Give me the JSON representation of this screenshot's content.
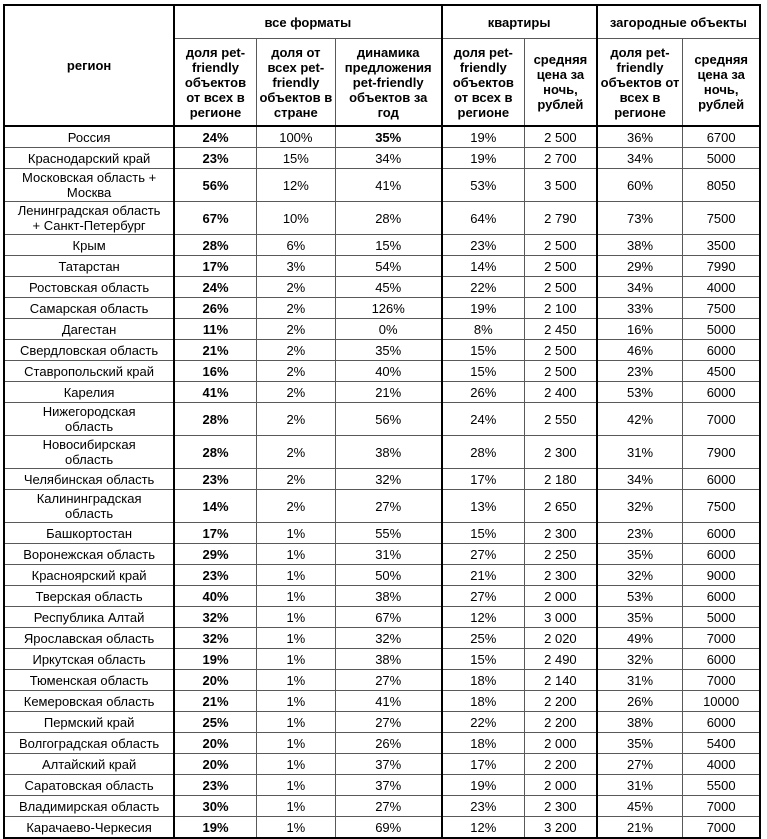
{
  "chart_data": {
    "type": "table",
    "title": "",
    "corner_header": "регион",
    "column_groups": [
      {
        "label": "все форматы",
        "span": 3
      },
      {
        "label": "квартиры",
        "span": 2
      },
      {
        "label": "загородные объекты",
        "span": 2
      }
    ],
    "columns": [
      "доля pet-friendly объектов от всех в регионе",
      "доля от всех pet-friendly объектов в стране",
      "динамика предложения pet-friendly объектов за год",
      "доля pet-friendly объектов от всех в регионе",
      "средняя цена за ночь, рублей",
      "доля pet-friendly объектов от всех в регионе",
      "средняя цена за ночь, рублей"
    ],
    "rows": [
      {
        "region": "Россия",
        "values": [
          "24%",
          "100%",
          "35%",
          "19%",
          "2 500",
          "36%",
          "6700"
        ],
        "bold_value_indexes": [
          0,
          2
        ]
      },
      {
        "region": "Краснодарский край",
        "values": [
          "23%",
          "15%",
          "34%",
          "19%",
          "2 700",
          "34%",
          "5000"
        ],
        "bold_value_indexes": [
          0
        ]
      },
      {
        "region": "Московская область + Москва",
        "values": [
          "56%",
          "12%",
          "41%",
          "53%",
          "3 500",
          "60%",
          "8050"
        ],
        "bold_value_indexes": [
          0
        ]
      },
      {
        "region": "Ленинградская область + Санкт-Петербург",
        "values": [
          "67%",
          "10%",
          "28%",
          "64%",
          "2 790",
          "73%",
          "7500"
        ],
        "bold_value_indexes": [
          0
        ]
      },
      {
        "region": "Крым",
        "values": [
          "28%",
          "6%",
          "15%",
          "23%",
          "2 500",
          "38%",
          "3500"
        ],
        "bold_value_indexes": [
          0
        ]
      },
      {
        "region": "Татарстан",
        "values": [
          "17%",
          "3%",
          "54%",
          "14%",
          "2 500",
          "29%",
          "7990"
        ],
        "bold_value_indexes": [
          0
        ]
      },
      {
        "region": "Ростовская область",
        "values": [
          "24%",
          "2%",
          "45%",
          "22%",
          "2 500",
          "34%",
          "4000"
        ],
        "bold_value_indexes": [
          0
        ]
      },
      {
        "region": "Самарская область",
        "values": [
          "26%",
          "2%",
          "126%",
          "19%",
          "2 100",
          "33%",
          "7500"
        ],
        "bold_value_indexes": [
          0
        ]
      },
      {
        "region": "Дагестан",
        "values": [
          "11%",
          "2%",
          "0%",
          "8%",
          "2 450",
          "16%",
          "5000"
        ],
        "bold_value_indexes": [
          0
        ]
      },
      {
        "region": "Свердловская область",
        "values": [
          "21%",
          "2%",
          "35%",
          "15%",
          "2 500",
          "46%",
          "6000"
        ],
        "bold_value_indexes": [
          0
        ]
      },
      {
        "region": "Ставропольский край",
        "values": [
          "16%",
          "2%",
          "40%",
          "15%",
          "2 500",
          "23%",
          "4500"
        ],
        "bold_value_indexes": [
          0
        ]
      },
      {
        "region": "Карелия",
        "values": [
          "41%",
          "2%",
          "21%",
          "26%",
          "2 400",
          "53%",
          "6000"
        ],
        "bold_value_indexes": [
          0
        ]
      },
      {
        "region": "Нижегородская область",
        "values": [
          "28%",
          "2%",
          "56%",
          "24%",
          "2 550",
          "42%",
          "7000"
        ],
        "bold_value_indexes": [
          0
        ]
      },
      {
        "region": "Новосибирская область",
        "values": [
          "28%",
          "2%",
          "38%",
          "28%",
          "2 300",
          "31%",
          "7900"
        ],
        "bold_value_indexes": [
          0
        ]
      },
      {
        "region": "Челябинская область",
        "values": [
          "23%",
          "2%",
          "32%",
          "17%",
          "2 180",
          "34%",
          "6000"
        ],
        "bold_value_indexes": [
          0
        ]
      },
      {
        "region": "Калининградская область",
        "values": [
          "14%",
          "2%",
          "27%",
          "13%",
          "2 650",
          "32%",
          "7500"
        ],
        "bold_value_indexes": [
          0
        ]
      },
      {
        "region": "Башкортостан",
        "values": [
          "17%",
          "1%",
          "55%",
          "15%",
          "2 300",
          "23%",
          "6000"
        ],
        "bold_value_indexes": [
          0
        ]
      },
      {
        "region": "Воронежская область",
        "values": [
          "29%",
          "1%",
          "31%",
          "27%",
          "2 250",
          "35%",
          "6000"
        ],
        "bold_value_indexes": [
          0
        ]
      },
      {
        "region": "Красноярский край",
        "values": [
          "23%",
          "1%",
          "50%",
          "21%",
          "2 300",
          "32%",
          "9000"
        ],
        "bold_value_indexes": [
          0
        ]
      },
      {
        "region": "Тверская область",
        "values": [
          "40%",
          "1%",
          "38%",
          "27%",
          "2 000",
          "53%",
          "6000"
        ],
        "bold_value_indexes": [
          0
        ]
      },
      {
        "region": "Республика Алтай",
        "values": [
          "32%",
          "1%",
          "67%",
          "12%",
          "3 000",
          "35%",
          "5000"
        ],
        "bold_value_indexes": [
          0
        ]
      },
      {
        "region": "Ярославская область",
        "values": [
          "32%",
          "1%",
          "32%",
          "25%",
          "2 020",
          "49%",
          "7000"
        ],
        "bold_value_indexes": [
          0
        ]
      },
      {
        "region": "Иркутская область",
        "values": [
          "19%",
          "1%",
          "38%",
          "15%",
          "2 490",
          "32%",
          "6000"
        ],
        "bold_value_indexes": [
          0
        ]
      },
      {
        "region": "Тюменская область",
        "values": [
          "20%",
          "1%",
          "27%",
          "18%",
          "2 140",
          "31%",
          "7000"
        ],
        "bold_value_indexes": [
          0
        ]
      },
      {
        "region": "Кемеровская область",
        "values": [
          "21%",
          "1%",
          "41%",
          "18%",
          "2 200",
          "26%",
          "10000"
        ],
        "bold_value_indexes": [
          0
        ]
      },
      {
        "region": "Пермский край",
        "values": [
          "25%",
          "1%",
          "27%",
          "22%",
          "2 200",
          "38%",
          "6000"
        ],
        "bold_value_indexes": [
          0
        ]
      },
      {
        "region": "Волгоградская область",
        "values": [
          "20%",
          "1%",
          "26%",
          "18%",
          "2 000",
          "35%",
          "5400"
        ],
        "bold_value_indexes": [
          0
        ]
      },
      {
        "region": "Алтайский край",
        "values": [
          "20%",
          "1%",
          "37%",
          "17%",
          "2 200",
          "27%",
          "4000"
        ],
        "bold_value_indexes": [
          0
        ]
      },
      {
        "region": "Саратовская область",
        "values": [
          "23%",
          "1%",
          "37%",
          "19%",
          "2 000",
          "31%",
          "5500"
        ],
        "bold_value_indexes": [
          0
        ]
      },
      {
        "region": "Владимирская область",
        "values": [
          "30%",
          "1%",
          "27%",
          "23%",
          "2 300",
          "45%",
          "7000"
        ],
        "bold_value_indexes": [
          0
        ]
      },
      {
        "region": "Карачаево-Черкесия",
        "values": [
          "19%",
          "1%",
          "69%",
          "12%",
          "3 200",
          "21%",
          "7000"
        ],
        "bold_value_indexes": [
          0
        ]
      }
    ],
    "layout_hints": {
      "grid": "on",
      "header_bold": true,
      "first_value_column_bold": true,
      "border_color": "#000000",
      "inner_grid_color": "#595959",
      "background_color": "#ffffff"
    }
  }
}
